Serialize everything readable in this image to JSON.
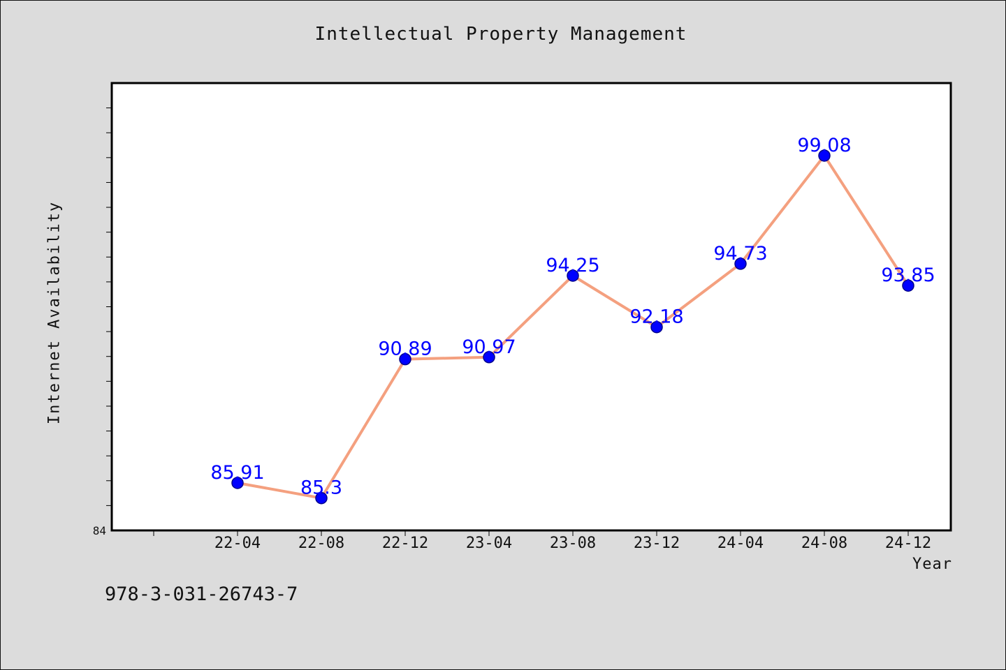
{
  "chart_data": {
    "type": "line",
    "title": "Intellectual Property Management",
    "xlabel": "Year",
    "ylabel": "Internet Availability",
    "categories": [
      "22-04",
      "22-08",
      "22-12",
      "23-04",
      "23-08",
      "23-12",
      "24-04",
      "24-08",
      "24-12"
    ],
    "series": [
      {
        "values": [
          85.91,
          85.3,
          90.89,
          90.97,
          94.25,
          92.18,
          94.73,
          99.08,
          93.85
        ]
      }
    ],
    "value_labels": [
      "85.91",
      "85.3",
      "90.89",
      "90.97",
      "94.25",
      "92.18",
      "94.73",
      "99.08",
      "93.85"
    ],
    "ylim": [
      84,
      102
    ],
    "y_ticks": [
      "84"
    ],
    "grid": false,
    "line_color": "#f4a07f",
    "marker_color": "#0000ff",
    "label_color": "#0000ff"
  },
  "footer_text": "978-3-031-26743-7"
}
